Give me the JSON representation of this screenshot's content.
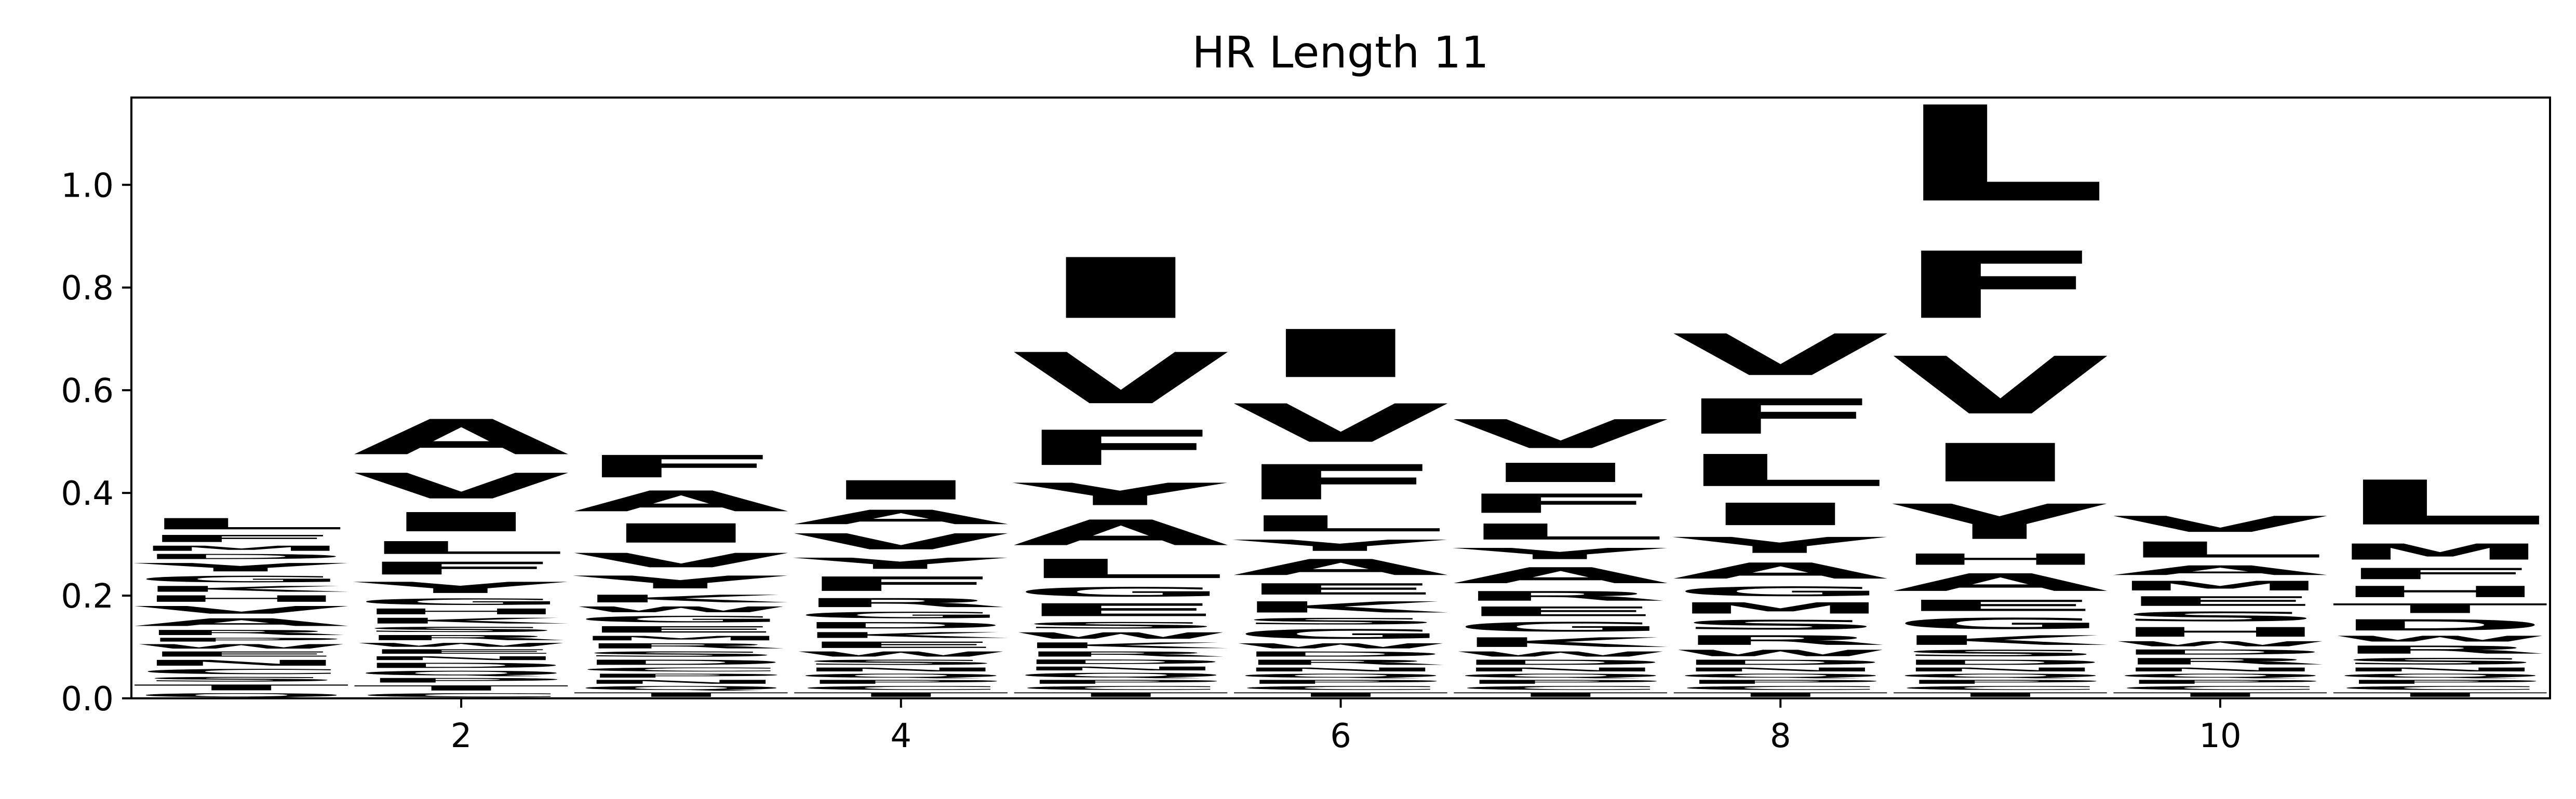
{
  "chart_data": {
    "type": "sequence-logo",
    "title": "HR Length 11",
    "xlabel": "",
    "ylabel": "",
    "xlim": [
      0.5,
      11.5
    ],
    "ylim": [
      0,
      1.17
    ],
    "x_ticks": [
      2,
      4,
      6,
      8,
      10
    ],
    "y_ticks": [
      0.0,
      0.2,
      0.4,
      0.6,
      0.8,
      1.0
    ],
    "x_tick_labels": [
      "2",
      "4",
      "6",
      "8",
      "10"
    ],
    "y_tick_labels": [
      "0.0",
      "0.2",
      "0.4",
      "0.6",
      "0.8",
      "1.0"
    ],
    "grid": false,
    "residue_colors": {
      "A": "#e41a1c",
      "V": "#1f78b4",
      "L": "#66c2a5",
      "F": "#ff7f00",
      "I": "#f781bf",
      "Y": "#fb9a99",
      "G": "#b3b3b3",
      "S": "#a6d854",
      "T": "#ffd92f",
      "K": "#8da0cb",
      "E": "#a65628",
      "R": "#984ea3",
      "D": "#4daf4a",
      "M": "#999999",
      "N": "#e5c494",
      "Q": "#fdb462",
      "H": "#fc8d62",
      "W": "#80b1d3",
      "C": "#fccde5",
      "P": "#b2df8a",
      "X": "#bebada",
      "Z": "#ffed6f"
    },
    "positions": [
      {
        "x": 1,
        "letters": [
          [
            "Q",
            0.012
          ],
          [
            "T",
            0.018
          ],
          [
            "S",
            0.014
          ],
          [
            "C",
            0.016
          ],
          [
            "N",
            0.018
          ],
          [
            "E",
            0.016
          ],
          [
            "W",
            0.014
          ],
          [
            "P",
            0.012
          ],
          [
            "R",
            0.016
          ],
          [
            "A",
            0.024
          ],
          [
            "V",
            0.024
          ],
          [
            "H",
            0.02
          ],
          [
            "K",
            0.018
          ],
          [
            "G",
            0.02
          ],
          [
            "Y",
            0.026
          ],
          [
            "D",
            0.016
          ],
          [
            "M",
            0.016
          ],
          [
            "F",
            0.022
          ],
          [
            "L",
            0.035
          ]
        ]
      },
      {
        "x": 2,
        "letters": [
          [
            "C",
            0.012
          ],
          [
            "T",
            0.016
          ],
          [
            "P",
            0.014
          ],
          [
            "Q",
            0.014
          ],
          [
            "D",
            0.016
          ],
          [
            "N",
            0.012
          ],
          [
            "E",
            0.014
          ],
          [
            "W",
            0.012
          ],
          [
            "R",
            0.016
          ],
          [
            "S",
            0.016
          ],
          [
            "K",
            0.018
          ],
          [
            "H",
            0.018
          ],
          [
            "G",
            0.02
          ],
          [
            "Y",
            0.035
          ],
          [
            "F",
            0.04
          ],
          [
            "L",
            0.04
          ],
          [
            "I",
            0.06
          ],
          [
            "V",
            0.08
          ],
          [
            "A",
            0.11
          ]
        ]
      },
      {
        "x": 3,
        "letters": [
          [
            "T",
            0.014
          ],
          [
            "Q",
            0.012
          ],
          [
            "N",
            0.012
          ],
          [
            "P",
            0.012
          ],
          [
            "C",
            0.012
          ],
          [
            "D",
            0.016
          ],
          [
            "S",
            0.016
          ],
          [
            "R",
            0.016
          ],
          [
            "M",
            0.014
          ],
          [
            "E",
            0.02
          ],
          [
            "G",
            0.02
          ],
          [
            "W",
            0.018
          ],
          [
            "K",
            0.024
          ],
          [
            "Y",
            0.04
          ],
          [
            "V",
            0.045
          ],
          [
            "I",
            0.06
          ],
          [
            "A",
            0.065
          ],
          [
            "F",
            0.07
          ]
        ]
      },
      {
        "x": 4,
        "letters": [
          [
            "T",
            0.014
          ],
          [
            "C",
            0.012
          ],
          [
            "P",
            0.012
          ],
          [
            "Q",
            0.012
          ],
          [
            "N",
            0.012
          ],
          [
            "S",
            0.016
          ],
          [
            "W",
            0.016
          ],
          [
            "E",
            0.02
          ],
          [
            "K",
            0.018
          ],
          [
            "D",
            0.02
          ],
          [
            "G",
            0.02
          ],
          [
            "R",
            0.028
          ],
          [
            "F",
            0.045
          ],
          [
            "Y",
            0.035
          ],
          [
            "V",
            0.05
          ],
          [
            "A",
            0.045
          ],
          [
            "I",
            0.06
          ]
        ]
      },
      {
        "x": 5,
        "letters": [
          [
            "T",
            0.014
          ],
          [
            "C",
            0.012
          ],
          [
            "P",
            0.012
          ],
          [
            "Q",
            0.014
          ],
          [
            "N",
            0.012
          ],
          [
            "D",
            0.014
          ],
          [
            "R",
            0.016
          ],
          [
            "K",
            0.018
          ],
          [
            "W",
            0.02
          ],
          [
            "S",
            0.02
          ],
          [
            "E",
            0.04
          ],
          [
            "G",
            0.03
          ],
          [
            "L",
            0.06
          ],
          [
            "A",
            0.08
          ],
          [
            "Y",
            0.07
          ],
          [
            "F",
            0.11
          ],
          [
            "V",
            0.16
          ],
          [
            "I",
            0.19
          ]
        ]
      },
      {
        "x": 6,
        "letters": [
          [
            "T",
            0.014
          ],
          [
            "C",
            0.012
          ],
          [
            "P",
            0.012
          ],
          [
            "Q",
            0.012
          ],
          [
            "N",
            0.012
          ],
          [
            "R",
            0.016
          ],
          [
            "D",
            0.016
          ],
          [
            "W",
            0.016
          ],
          [
            "G",
            0.03
          ],
          [
            "S",
            0.02
          ],
          [
            "K",
            0.035
          ],
          [
            "E",
            0.035
          ],
          [
            "A",
            0.05
          ],
          [
            "Y",
            0.035
          ],
          [
            "L",
            0.05
          ],
          [
            "F",
            0.11
          ],
          [
            "V",
            0.12
          ],
          [
            "I",
            0.15
          ]
        ]
      },
      {
        "x": 7,
        "letters": [
          [
            "T",
            0.014
          ],
          [
            "C",
            0.012
          ],
          [
            "P",
            0.012
          ],
          [
            "Q",
            0.012
          ],
          [
            "N",
            0.012
          ],
          [
            "D",
            0.016
          ],
          [
            "W",
            0.016
          ],
          [
            "K",
            0.03
          ],
          [
            "G",
            0.03
          ],
          [
            "E",
            0.03
          ],
          [
            "R",
            0.03
          ],
          [
            "A",
            0.05
          ],
          [
            "Y",
            0.035
          ],
          [
            "L",
            0.05
          ],
          [
            "F",
            0.06
          ],
          [
            "I",
            0.06
          ],
          [
            "V",
            0.09
          ]
        ]
      },
      {
        "x": 8,
        "letters": [
          [
            "T",
            0.014
          ],
          [
            "C",
            0.012
          ],
          [
            "P",
            0.012
          ],
          [
            "Q",
            0.012
          ],
          [
            "N",
            0.012
          ],
          [
            "D",
            0.016
          ],
          [
            "W",
            0.02
          ],
          [
            "R",
            0.03
          ],
          [
            "S",
            0.03
          ],
          [
            "M",
            0.035
          ],
          [
            "G",
            0.03
          ],
          [
            "A",
            0.05
          ],
          [
            "Y",
            0.05
          ],
          [
            "I",
            0.07
          ],
          [
            "L",
            0.1
          ],
          [
            "F",
            0.11
          ],
          [
            "V",
            0.13
          ]
        ]
      },
      {
        "x": 9,
        "letters": [
          [
            "T",
            0.014
          ],
          [
            "C",
            0.012
          ],
          [
            "P",
            0.012
          ],
          [
            "Q",
            0.012
          ],
          [
            "N",
            0.012
          ],
          [
            "D",
            0.016
          ],
          [
            "S",
            0.02
          ],
          [
            "K",
            0.03
          ],
          [
            "G",
            0.035
          ],
          [
            "E",
            0.035
          ],
          [
            "A",
            0.055
          ],
          [
            "H",
            0.035
          ],
          [
            "Y",
            0.11
          ],
          [
            "I",
            0.12
          ],
          [
            "V",
            0.18
          ],
          [
            "F",
            0.21
          ],
          [
            "L",
            0.3
          ]
        ]
      },
      {
        "x": 10,
        "letters": [
          [
            "T",
            0.014
          ],
          [
            "C",
            0.012
          ],
          [
            "P",
            0.012
          ],
          [
            "Q",
            0.012
          ],
          [
            "N",
            0.012
          ],
          [
            "R",
            0.02
          ],
          [
            "D",
            0.016
          ],
          [
            "W",
            0.016
          ],
          [
            "H",
            0.03
          ],
          [
            "S",
            0.03
          ],
          [
            "E",
            0.03
          ],
          [
            "M",
            0.03
          ],
          [
            "A",
            0.03
          ],
          [
            "L",
            0.05
          ],
          [
            "V",
            0.05
          ]
        ]
      },
      {
        "x": 11,
        "letters": [
          [
            "T",
            0.014
          ],
          [
            "C",
            0.012
          ],
          [
            "P",
            0.012
          ],
          [
            "Q",
            0.012
          ],
          [
            "N",
            0.012
          ],
          [
            "S",
            0.02
          ],
          [
            "R",
            0.025
          ],
          [
            "W",
            0.018
          ],
          [
            "D",
            0.035
          ],
          [
            "T",
            0.03
          ],
          [
            "H",
            0.035
          ],
          [
            "F",
            0.035
          ],
          [
            "M",
            0.05
          ],
          [
            "L",
            0.14
          ]
        ]
      }
    ]
  }
}
